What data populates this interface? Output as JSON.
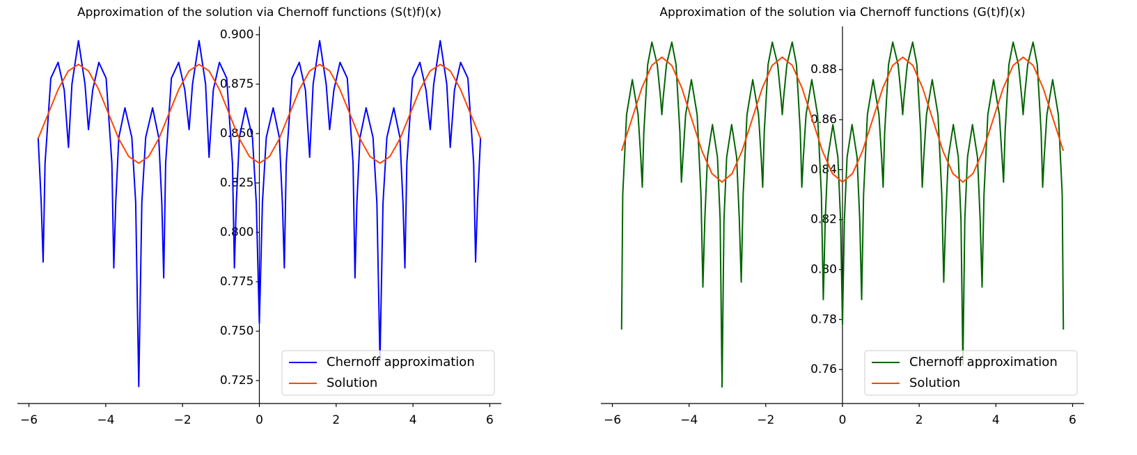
{
  "chart_data": [
    {
      "type": "line",
      "title": "Approximation of the solution via Chernoff functions (S(t)f)(x)",
      "xlim": [
        -6.3,
        6.3
      ],
      "ylim": [
        0.7134,
        0.9042
      ],
      "xticks": [
        {
          "value": -6,
          "label": "−6"
        },
        {
          "value": -4,
          "label": "−4"
        },
        {
          "value": -2,
          "label": "−2"
        },
        0,
        2,
        4,
        6
      ],
      "yticks": [
        0.725,
        {
          "value": 0.75,
          "label": "0.750"
        },
        0.775,
        {
          "value": 0.8,
          "label": "0.800"
        },
        0.825,
        {
          "value": 0.85,
          "label": "0.850"
        },
        0.875,
        {
          "value": 0.9,
          "label": "0.900"
        }
      ],
      "legend": "lower right",
      "series": [
        {
          "name": "Chernoff approximation",
          "color": "#0000ff",
          "x": [
            -5.76,
            -5.68,
            -5.63,
            -5.58,
            -5.43,
            -5.24,
            -5.08,
            -4.97,
            -4.88,
            -4.71,
            -4.54,
            -4.45,
            -4.34,
            -4.18,
            -3.99,
            -3.84,
            -3.79,
            -3.74,
            -3.66,
            -3.5,
            -3.32,
            -3.22,
            -3.14,
            -3.06,
            -2.96,
            -2.78,
            -2.62,
            -2.54,
            -2.49,
            -2.44,
            -2.29,
            -2.1,
            -1.94,
            -1.83,
            -1.74,
            -1.57,
            -1.4,
            -1.31,
            -1.2,
            -1.04,
            -0.85,
            -0.7,
            -0.65,
            -0.6,
            -0.52,
            -0.36,
            -0.18,
            -0.08,
            0,
            0.08,
            0.18,
            0.36,
            0.52,
            0.6,
            0.65,
            0.7,
            0.85,
            1.04,
            1.2,
            1.31,
            1.4,
            1.57,
            1.74,
            1.83,
            1.94,
            2.1,
            2.29,
            2.44,
            2.49,
            2.54,
            2.62,
            2.78,
            2.96,
            3.06,
            3.14,
            3.22,
            3.32,
            3.5,
            3.66,
            3.74,
            3.79,
            3.84,
            3.99,
            4.18,
            4.34,
            4.45,
            4.54,
            4.71,
            4.88,
            4.97,
            5.08,
            5.24,
            5.43,
            5.58,
            5.63,
            5.68,
            5.76
          ],
          "values": [
            0.848,
            0.815,
            0.785,
            0.835,
            0.878,
            0.886,
            0.872,
            0.843,
            0.875,
            0.897,
            0.875,
            0.852,
            0.872,
            0.886,
            0.878,
            0.835,
            0.782,
            0.815,
            0.848,
            0.863,
            0.848,
            0.815,
            0.722,
            0.815,
            0.848,
            0.863,
            0.848,
            0.815,
            0.777,
            0.835,
            0.878,
            0.886,
            0.872,
            0.852,
            0.875,
            0.897,
            0.875,
            0.838,
            0.872,
            0.886,
            0.878,
            0.835,
            0.782,
            0.815,
            0.848,
            0.863,
            0.848,
            0.815,
            0.754,
            0.815,
            0.848,
            0.863,
            0.848,
            0.815,
            0.782,
            0.835,
            0.878,
            0.886,
            0.872,
            0.838,
            0.875,
            0.897,
            0.875,
            0.852,
            0.872,
            0.886,
            0.878,
            0.835,
            0.777,
            0.815,
            0.848,
            0.863,
            0.848,
            0.815,
            0.735,
            0.815,
            0.848,
            0.863,
            0.848,
            0.815,
            0.782,
            0.835,
            0.878,
            0.886,
            0.872,
            0.852,
            0.875,
            0.897,
            0.875,
            0.843,
            0.872,
            0.886,
            0.878,
            0.835,
            0.785,
            0.815,
            0.848
          ]
        },
        {
          "name": "Solution",
          "color": "#ff4500",
          "x": [
            -5.76,
            -5.498,
            -5.236,
            -4.974,
            -4.712,
            -4.451,
            -4.189,
            -3.927,
            -3.665,
            -3.403,
            -3.142,
            -2.88,
            -2.618,
            -2.356,
            -2.094,
            -1.833,
            -1.571,
            -1.309,
            -1.047,
            -0.785,
            -0.524,
            -0.262,
            0,
            0.262,
            0.524,
            0.785,
            1.047,
            1.309,
            1.571,
            1.833,
            2.094,
            2.356,
            2.618,
            2.88,
            3.142,
            3.403,
            3.665,
            3.927,
            4.189,
            4.451,
            4.712,
            4.974,
            5.236,
            5.498,
            5.76
          ],
          "values": [
            0.8475,
            0.86,
            0.8725,
            0.8817,
            0.885,
            0.8817,
            0.8725,
            0.86,
            0.8475,
            0.8384,
            0.835,
            0.8384,
            0.8475,
            0.86,
            0.8725,
            0.8817,
            0.885,
            0.8817,
            0.8725,
            0.86,
            0.8475,
            0.8384,
            0.835,
            0.8384,
            0.8475,
            0.86,
            0.8725,
            0.8817,
            0.885,
            0.8817,
            0.8725,
            0.86,
            0.8475,
            0.8384,
            0.835,
            0.8384,
            0.8475,
            0.86,
            0.8725,
            0.8817,
            0.885,
            0.8817,
            0.8725,
            0.86,
            0.8475
          ]
        }
      ]
    },
    {
      "type": "line",
      "title": "Approximation of the solution via Chernoff functions (G(t)f)(x)",
      "xlim": [
        -6.3,
        6.3
      ],
      "ylim": [
        0.7464,
        0.8973
      ],
      "xticks": [
        {
          "value": -6,
          "label": "−6"
        },
        {
          "value": -4,
          "label": "−4"
        },
        {
          "value": -2,
          "label": "−2"
        },
        0,
        2,
        4,
        6
      ],
      "yticks": [
        0.76,
        0.78,
        {
          "value": 0.8,
          "label": "0.80"
        },
        0.82,
        0.84,
        0.86,
        0.88
      ],
      "legend": "lower right",
      "series": [
        {
          "name": "Chernoff approximation",
          "color": "#006400",
          "x": [
            -5.76,
            -5.73,
            -5.63,
            -5.48,
            -5.33,
            -5.26,
            -5.22,
            -5.18,
            -5.08,
            -4.97,
            -4.83,
            -4.74,
            -4.71,
            -4.68,
            -4.59,
            -4.45,
            -4.34,
            -4.24,
            -4.2,
            -4.16,
            -4.09,
            -3.94,
            -3.79,
            -3.69,
            -3.64,
            -3.59,
            -3.52,
            -3.39,
            -3.26,
            -3.19,
            -3.14,
            -3.09,
            -3.02,
            -2.89,
            -2.76,
            -2.69,
            -2.64,
            -2.59,
            -2.49,
            -2.34,
            -2.19,
            -2.12,
            -2.08,
            -2.04,
            -1.94,
            -1.83,
            -1.69,
            -1.6,
            -1.57,
            -1.54,
            -1.45,
            -1.31,
            -1.2,
            -1.1,
            -1.06,
            -1.02,
            -0.95,
            -0.8,
            -0.65,
            -0.55,
            -0.5,
            -0.45,
            -0.38,
            -0.25,
            -0.12,
            -0.05,
            0,
            0.05,
            0.12,
            0.25,
            0.38,
            0.45,
            0.5,
            0.55,
            0.65,
            0.8,
            0.95,
            1.02,
            1.06,
            1.1,
            1.2,
            1.31,
            1.45,
            1.54,
            1.57,
            1.6,
            1.69,
            1.83,
            1.94,
            2.04,
            2.08,
            2.12,
            2.19,
            2.34,
            2.49,
            2.59,
            2.64,
            2.69,
            2.76,
            2.89,
            3.02,
            3.09,
            3.14,
            3.19,
            3.26,
            3.39,
            3.52,
            3.59,
            3.64,
            3.69,
            3.79,
            3.94,
            4.09,
            4.16,
            4.2,
            4.24,
            4.34,
            4.45,
            4.59,
            4.68,
            4.71,
            4.74,
            4.83,
            4.97,
            5.08,
            5.18,
            5.22,
            5.26,
            5.33,
            5.48,
            5.63,
            5.73,
            5.76
          ],
          "values": [
            0.776,
            0.83,
            0.862,
            0.876,
            0.862,
            0.845,
            0.833,
            0.855,
            0.882,
            0.891,
            0.882,
            0.868,
            0.862,
            0.868,
            0.882,
            0.891,
            0.882,
            0.855,
            0.835,
            0.845,
            0.862,
            0.876,
            0.862,
            0.83,
            0.793,
            0.82,
            0.845,
            0.858,
            0.845,
            0.82,
            0.753,
            0.82,
            0.845,
            0.858,
            0.845,
            0.82,
            0.795,
            0.83,
            0.862,
            0.876,
            0.862,
            0.845,
            0.833,
            0.855,
            0.882,
            0.891,
            0.882,
            0.868,
            0.862,
            0.868,
            0.882,
            0.891,
            0.882,
            0.855,
            0.833,
            0.845,
            0.862,
            0.876,
            0.862,
            0.83,
            0.788,
            0.82,
            0.845,
            0.858,
            0.845,
            0.82,
            0.778,
            0.82,
            0.845,
            0.858,
            0.845,
            0.82,
            0.788,
            0.83,
            0.862,
            0.876,
            0.862,
            0.845,
            0.833,
            0.855,
            0.882,
            0.891,
            0.882,
            0.868,
            0.862,
            0.868,
            0.882,
            0.891,
            0.882,
            0.855,
            0.833,
            0.845,
            0.862,
            0.876,
            0.862,
            0.83,
            0.795,
            0.82,
            0.845,
            0.858,
            0.845,
            0.82,
            0.762,
            0.82,
            0.845,
            0.858,
            0.845,
            0.82,
            0.793,
            0.83,
            0.862,
            0.876,
            0.862,
            0.845,
            0.835,
            0.855,
            0.882,
            0.891,
            0.882,
            0.868,
            0.862,
            0.868,
            0.882,
            0.891,
            0.882,
            0.855,
            0.833,
            0.845,
            0.862,
            0.876,
            0.862,
            0.83,
            0.776
          ]
        },
        {
          "name": "Solution",
          "color": "#ff4500",
          "x": [
            -5.76,
            -5.498,
            -5.236,
            -4.974,
            -4.712,
            -4.451,
            -4.189,
            -3.927,
            -3.665,
            -3.403,
            -3.142,
            -2.88,
            -2.618,
            -2.356,
            -2.094,
            -1.833,
            -1.571,
            -1.309,
            -1.047,
            -0.785,
            -0.524,
            -0.262,
            0,
            0.262,
            0.524,
            0.785,
            1.047,
            1.309,
            1.571,
            1.833,
            2.094,
            2.356,
            2.618,
            2.88,
            3.142,
            3.403,
            3.665,
            3.927,
            4.189,
            4.451,
            4.712,
            4.974,
            5.236,
            5.498,
            5.76
          ],
          "values": [
            0.8475,
            0.86,
            0.8725,
            0.8817,
            0.885,
            0.8817,
            0.8725,
            0.86,
            0.8475,
            0.8384,
            0.835,
            0.8384,
            0.8475,
            0.86,
            0.8725,
            0.8817,
            0.885,
            0.8817,
            0.8725,
            0.86,
            0.8475,
            0.8384,
            0.835,
            0.8384,
            0.8475,
            0.86,
            0.8725,
            0.8817,
            0.885,
            0.8817,
            0.8725,
            0.86,
            0.8475,
            0.8384,
            0.835,
            0.8384,
            0.8475,
            0.86,
            0.8725,
            0.8817,
            0.885,
            0.8817,
            0.8725,
            0.86,
            0.8475
          ]
        }
      ]
    }
  ]
}
